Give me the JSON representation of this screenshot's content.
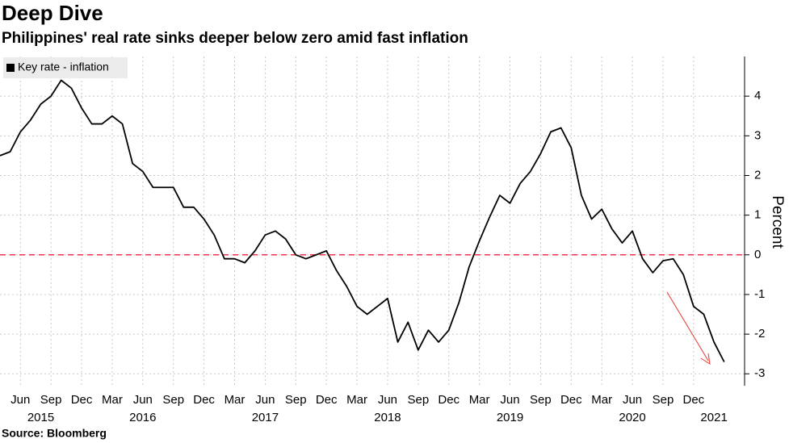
{
  "chart_data": {
    "type": "line",
    "title": "Deep Dive",
    "subtitle": "Philippines' real rate sinks deeper below zero amid fast inflation",
    "source": "Source: Bloomberg",
    "y_label": "Percent",
    "x": [
      "2015-04",
      "2015-05",
      "2015-06",
      "2015-07",
      "2015-08",
      "2015-09",
      "2015-10",
      "2015-11",
      "2015-12",
      "2016-01",
      "2016-02",
      "2016-03",
      "2016-04",
      "2016-05",
      "2016-06",
      "2016-07",
      "2016-08",
      "2016-09",
      "2016-10",
      "2016-11",
      "2016-12",
      "2017-01",
      "2017-02",
      "2017-03",
      "2017-04",
      "2017-05",
      "2017-06",
      "2017-07",
      "2017-08",
      "2017-09",
      "2017-10",
      "2017-11",
      "2017-12",
      "2018-01",
      "2018-02",
      "2018-03",
      "2018-04",
      "2018-05",
      "2018-06",
      "2018-07",
      "2018-08",
      "2018-09",
      "2018-10",
      "2018-11",
      "2018-12",
      "2019-01",
      "2019-02",
      "2019-03",
      "2019-04",
      "2019-05",
      "2019-06",
      "2019-07",
      "2019-08",
      "2019-09",
      "2019-10",
      "2019-11",
      "2019-12",
      "2020-01",
      "2020-02",
      "2020-03",
      "2020-04",
      "2020-05",
      "2020-06",
      "2020-07",
      "2020-08",
      "2020-09",
      "2020-10",
      "2020-11",
      "2020-12",
      "2021-01",
      "2021-02",
      "2021-03"
    ],
    "series": [
      {
        "name": "Key rate - inflation",
        "color": "#000000",
        "values": [
          2.5,
          2.6,
          3.1,
          3.4,
          3.8,
          4.0,
          4.4,
          4.2,
          3.7,
          3.3,
          3.3,
          3.5,
          3.3,
          2.3,
          2.1,
          1.7,
          1.7,
          1.7,
          1.2,
          1.2,
          0.9,
          0.5,
          -0.1,
          -0.1,
          -0.2,
          0.1,
          0.5,
          0.6,
          0.4,
          0.0,
          -0.1,
          0.0,
          0.1,
          -0.4,
          -0.8,
          -1.3,
          -1.5,
          -1.3,
          -1.1,
          -2.2,
          -1.7,
          -2.4,
          -1.9,
          -2.2,
          -1.9,
          -1.2,
          -0.3,
          0.35,
          0.95,
          1.5,
          1.3,
          1.8,
          2.1,
          2.55,
          3.1,
          3.2,
          2.7,
          1.5,
          0.9,
          1.15,
          0.65,
          0.3,
          0.6,
          -0.1,
          -0.45,
          -0.15,
          -0.1,
          -0.5,
          -1.3,
          -1.5,
          -2.2,
          -2.7
        ]
      }
    ],
    "xlim": [
      "2015-04",
      "2021-05"
    ],
    "xticks": [
      {
        "value": "2015-06",
        "label": "Jun"
      },
      {
        "value": "2015-09",
        "label": "Sep"
      },
      {
        "value": "2015-12",
        "label": "Dec"
      },
      {
        "value": "2016-03",
        "label": "Mar"
      },
      {
        "value": "2016-06",
        "label": "Jun"
      },
      {
        "value": "2016-09",
        "label": "Sep"
      },
      {
        "value": "2016-12",
        "label": "Dec"
      },
      {
        "value": "2017-03",
        "label": "Mar"
      },
      {
        "value": "2017-06",
        "label": "Jun"
      },
      {
        "value": "2017-09",
        "label": "Sep"
      },
      {
        "value": "2017-12",
        "label": "Dec"
      },
      {
        "value": "2018-03",
        "label": "Mar"
      },
      {
        "value": "2018-06",
        "label": "Jun"
      },
      {
        "value": "2018-09",
        "label": "Sep"
      },
      {
        "value": "2018-12",
        "label": "Dec"
      },
      {
        "value": "2019-03",
        "label": "Mar"
      },
      {
        "value": "2019-06",
        "label": "Jun"
      },
      {
        "value": "2019-09",
        "label": "Sep"
      },
      {
        "value": "2019-12",
        "label": "Dec"
      },
      {
        "value": "2020-03",
        "label": "Mar"
      },
      {
        "value": "2020-06",
        "label": "Jun"
      },
      {
        "value": "2020-09",
        "label": "Sep"
      },
      {
        "value": "2020-12",
        "label": "Dec"
      }
    ],
    "year_labels": [
      {
        "value": "2015-08",
        "label": "2015"
      },
      {
        "value": "2016-06",
        "label": "2016"
      },
      {
        "value": "2017-06",
        "label": "2017"
      },
      {
        "value": "2018-06",
        "label": "2018"
      },
      {
        "value": "2019-06",
        "label": "2019"
      },
      {
        "value": "2020-06",
        "label": "2020"
      },
      {
        "value": "2021-02",
        "label": "2021"
      }
    ],
    "ylim": [
      -3.3,
      5
    ],
    "yticks": [
      -3,
      -2,
      -1,
      0,
      1,
      2,
      3,
      4
    ],
    "grid": true,
    "reference_line": {
      "value": 0,
      "color": "#e8374f"
    },
    "legend": "top-left"
  }
}
